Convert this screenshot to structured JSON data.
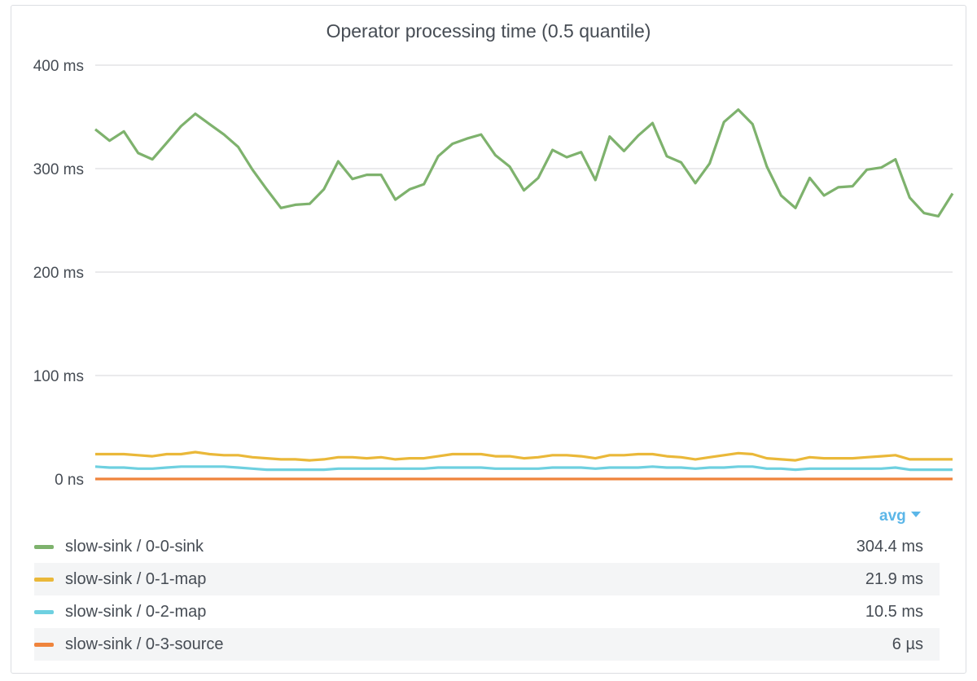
{
  "panel": {
    "title": "Operator processing time (0.5 quantile)"
  },
  "legend": {
    "header_label": "avg",
    "items": [
      {
        "name": "slow-sink / 0-0-sink",
        "value": "304.4 ms",
        "color": "#7eb26d"
      },
      {
        "name": "slow-sink / 0-1-map",
        "value": "21.9 ms",
        "color": "#eab839"
      },
      {
        "name": "slow-sink / 0-2-map",
        "value": "10.5 ms",
        "color": "#6ed0e0"
      },
      {
        "name": "slow-sink / 0-3-source",
        "value": "6 µs",
        "color": "#ef843c"
      }
    ]
  },
  "chart_data": {
    "type": "line",
    "title": "Operator processing time (0.5 quantile)",
    "xlabel": "",
    "ylabel": "",
    "y_unit": "ms",
    "ylim": [
      0,
      400
    ],
    "yticks": [
      {
        "value": 0,
        "label": "0 ns"
      },
      {
        "value": 100,
        "label": "100 ms"
      },
      {
        "value": 200,
        "label": "200 ms"
      },
      {
        "value": 300,
        "label": "300 ms"
      },
      {
        "value": 400,
        "label": "400 ms"
      }
    ],
    "grid": true,
    "legend_position": "bottom",
    "series": [
      {
        "name": "slow-sink / 0-0-sink",
        "color": "#7eb26d",
        "values": [
          338,
          327,
          336,
          315,
          309,
          325,
          341,
          353,
          343,
          333,
          321,
          299,
          280,
          262,
          265,
          266,
          280,
          307,
          290,
          294,
          294,
          270,
          280,
          285,
          312,
          324,
          329,
          333,
          313,
          302,
          279,
          291,
          318,
          311,
          316,
          289,
          331,
          317,
          332,
          344,
          312,
          306,
          286,
          305,
          345,
          357,
          343,
          302,
          274,
          262,
          291,
          274,
          282,
          283,
          299,
          301,
          309,
          272,
          257,
          254,
          276
        ]
      },
      {
        "name": "slow-sink / 0-1-map",
        "color": "#eab839",
        "values": [
          24,
          24,
          24,
          23,
          22,
          24,
          24,
          26,
          24,
          23,
          23,
          21,
          20,
          19,
          19,
          18,
          19,
          21,
          21,
          20,
          21,
          19,
          20,
          20,
          22,
          24,
          24,
          24,
          22,
          22,
          20,
          21,
          23,
          23,
          22,
          20,
          23,
          23,
          24,
          24,
          22,
          21,
          19,
          21,
          23,
          25,
          24,
          20,
          19,
          18,
          21,
          20,
          20,
          20,
          21,
          22,
          23,
          19,
          19,
          19,
          19
        ]
      },
      {
        "name": "slow-sink / 0-2-map",
        "color": "#6ed0e0",
        "values": [
          12,
          11,
          11,
          10,
          10,
          11,
          12,
          12,
          12,
          12,
          11,
          10,
          9,
          9,
          9,
          9,
          9,
          10,
          10,
          10,
          10,
          10,
          10,
          10,
          11,
          11,
          11,
          11,
          10,
          10,
          10,
          10,
          11,
          11,
          11,
          10,
          11,
          11,
          11,
          12,
          11,
          11,
          10,
          11,
          11,
          12,
          12,
          10,
          10,
          9,
          10,
          10,
          10,
          10,
          10,
          10,
          11,
          9,
          9,
          9,
          9
        ]
      },
      {
        "name": "slow-sink / 0-3-source",
        "color": "#ef843c",
        "values": [
          0.006,
          0.006,
          0.006,
          0.006,
          0.006,
          0.006,
          0.006,
          0.006,
          0.006,
          0.006,
          0.006,
          0.006,
          0.006,
          0.006,
          0.006,
          0.006,
          0.006,
          0.006,
          0.006,
          0.006,
          0.006,
          0.006,
          0.006,
          0.006,
          0.006,
          0.006,
          0.006,
          0.006,
          0.006,
          0.006,
          0.006,
          0.006,
          0.006,
          0.006,
          0.006,
          0.006,
          0.006,
          0.006,
          0.006,
          0.006,
          0.006,
          0.006,
          0.006,
          0.006,
          0.006,
          0.006,
          0.006,
          0.006,
          0.006,
          0.006,
          0.006,
          0.006,
          0.006,
          0.006,
          0.006,
          0.006,
          0.006,
          0.006,
          0.006,
          0.006,
          0.006
        ]
      }
    ]
  }
}
